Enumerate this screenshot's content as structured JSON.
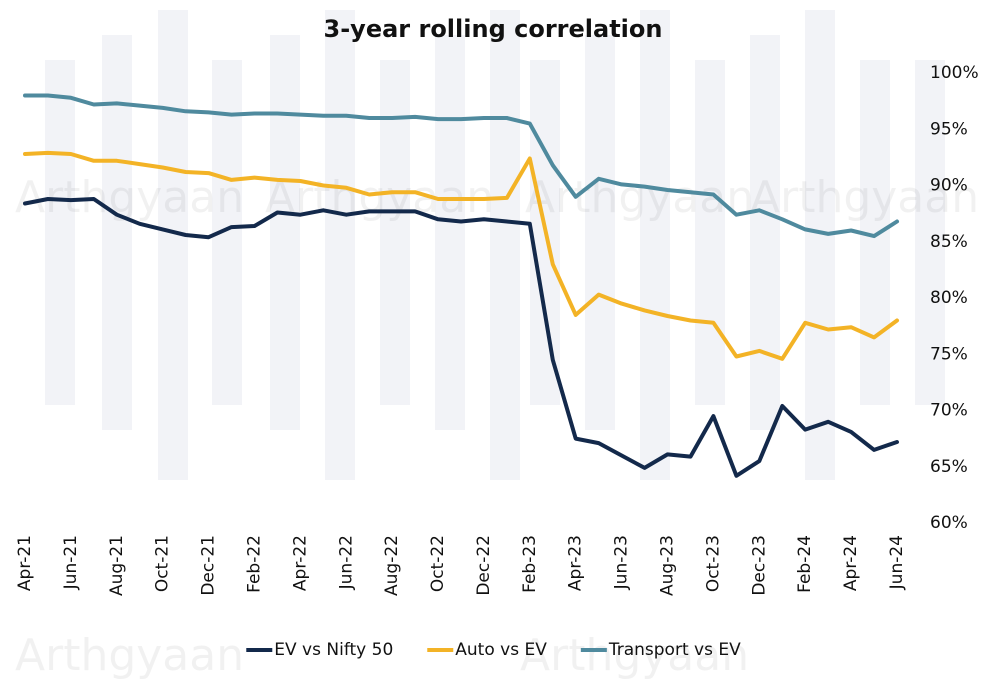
{
  "chart_data": {
    "type": "line",
    "title": "3-year rolling correlation",
    "watermark": "Arthgyaan",
    "categories": [
      "Apr-21",
      null,
      "Jun-21",
      null,
      "Aug-21",
      null,
      "Oct-21",
      null,
      "Dec-21",
      null,
      "Feb-22",
      null,
      "Apr-22",
      null,
      "Jun-22",
      null,
      "Aug-22",
      null,
      "Oct-22",
      null,
      "Dec-22",
      null,
      "Feb-23",
      null,
      "Apr-23",
      null,
      "Jun-23",
      null,
      "Aug-23",
      null,
      "Oct-23",
      null,
      "Dec-23",
      null,
      "Feb-24",
      null,
      "Apr-24",
      null,
      "Jun-24"
    ],
    "series": [
      {
        "name": "EV vs Nifty 50",
        "color": "#13294b",
        "values": [
          88.4,
          88.8,
          88.7,
          88.8,
          87.4,
          86.6,
          86.1,
          85.6,
          85.4,
          86.3,
          86.4,
          87.6,
          87.4,
          87.8,
          87.4,
          87.7,
          87.7,
          87.7,
          87.0,
          86.8,
          87.0,
          86.8,
          86.6,
          74.5,
          67.5,
          67.1,
          66.0,
          64.9,
          66.1,
          65.9,
          69.5,
          64.2,
          65.5,
          70.4,
          68.3,
          69.0,
          68.1,
          66.5,
          67.2
        ]
      },
      {
        "name": "Auto vs EV",
        "color": "#f3b326",
        "values": [
          92.8,
          92.9,
          92.8,
          92.2,
          92.2,
          91.9,
          91.6,
          91.2,
          91.1,
          90.5,
          90.7,
          90.5,
          90.4,
          90.0,
          89.8,
          89.2,
          89.4,
          89.4,
          88.8,
          88.8,
          88.8,
          88.9,
          92.4,
          83.0,
          78.5,
          80.3,
          79.5,
          78.9,
          78.4,
          78.0,
          77.8,
          74.8,
          75.3,
          74.6,
          77.8,
          77.2,
          77.4,
          76.5,
          78.0
        ]
      },
      {
        "name": "Transport vs EV",
        "color": "#4f8a9e",
        "values": [
          98.0,
          98.0,
          97.8,
          97.2,
          97.3,
          97.1,
          96.9,
          96.6,
          96.5,
          96.3,
          96.4,
          96.4,
          96.3,
          96.2,
          96.2,
          96.0,
          96.0,
          96.1,
          95.9,
          95.9,
          96.0,
          96.0,
          95.5,
          91.8,
          89.0,
          90.6,
          90.1,
          89.9,
          89.6,
          89.4,
          89.2,
          87.4,
          87.8,
          87.0,
          86.1,
          85.7,
          86.0,
          85.5,
          86.8
        ]
      }
    ],
    "ylim": [
      60,
      100
    ],
    "yticks": [
      {
        "value": 60,
        "label": "60%"
      },
      {
        "value": 65,
        "label": "65%"
      },
      {
        "value": 70,
        "label": "70%"
      },
      {
        "value": 75,
        "label": "75%"
      },
      {
        "value": 80,
        "label": "80%"
      },
      {
        "value": 85,
        "label": "85%"
      },
      {
        "value": 90,
        "label": "90%"
      },
      {
        "value": 95,
        "label": "95%"
      },
      {
        "value": 100,
        "label": "100%"
      }
    ],
    "grid": false,
    "legend": "bottom"
  }
}
